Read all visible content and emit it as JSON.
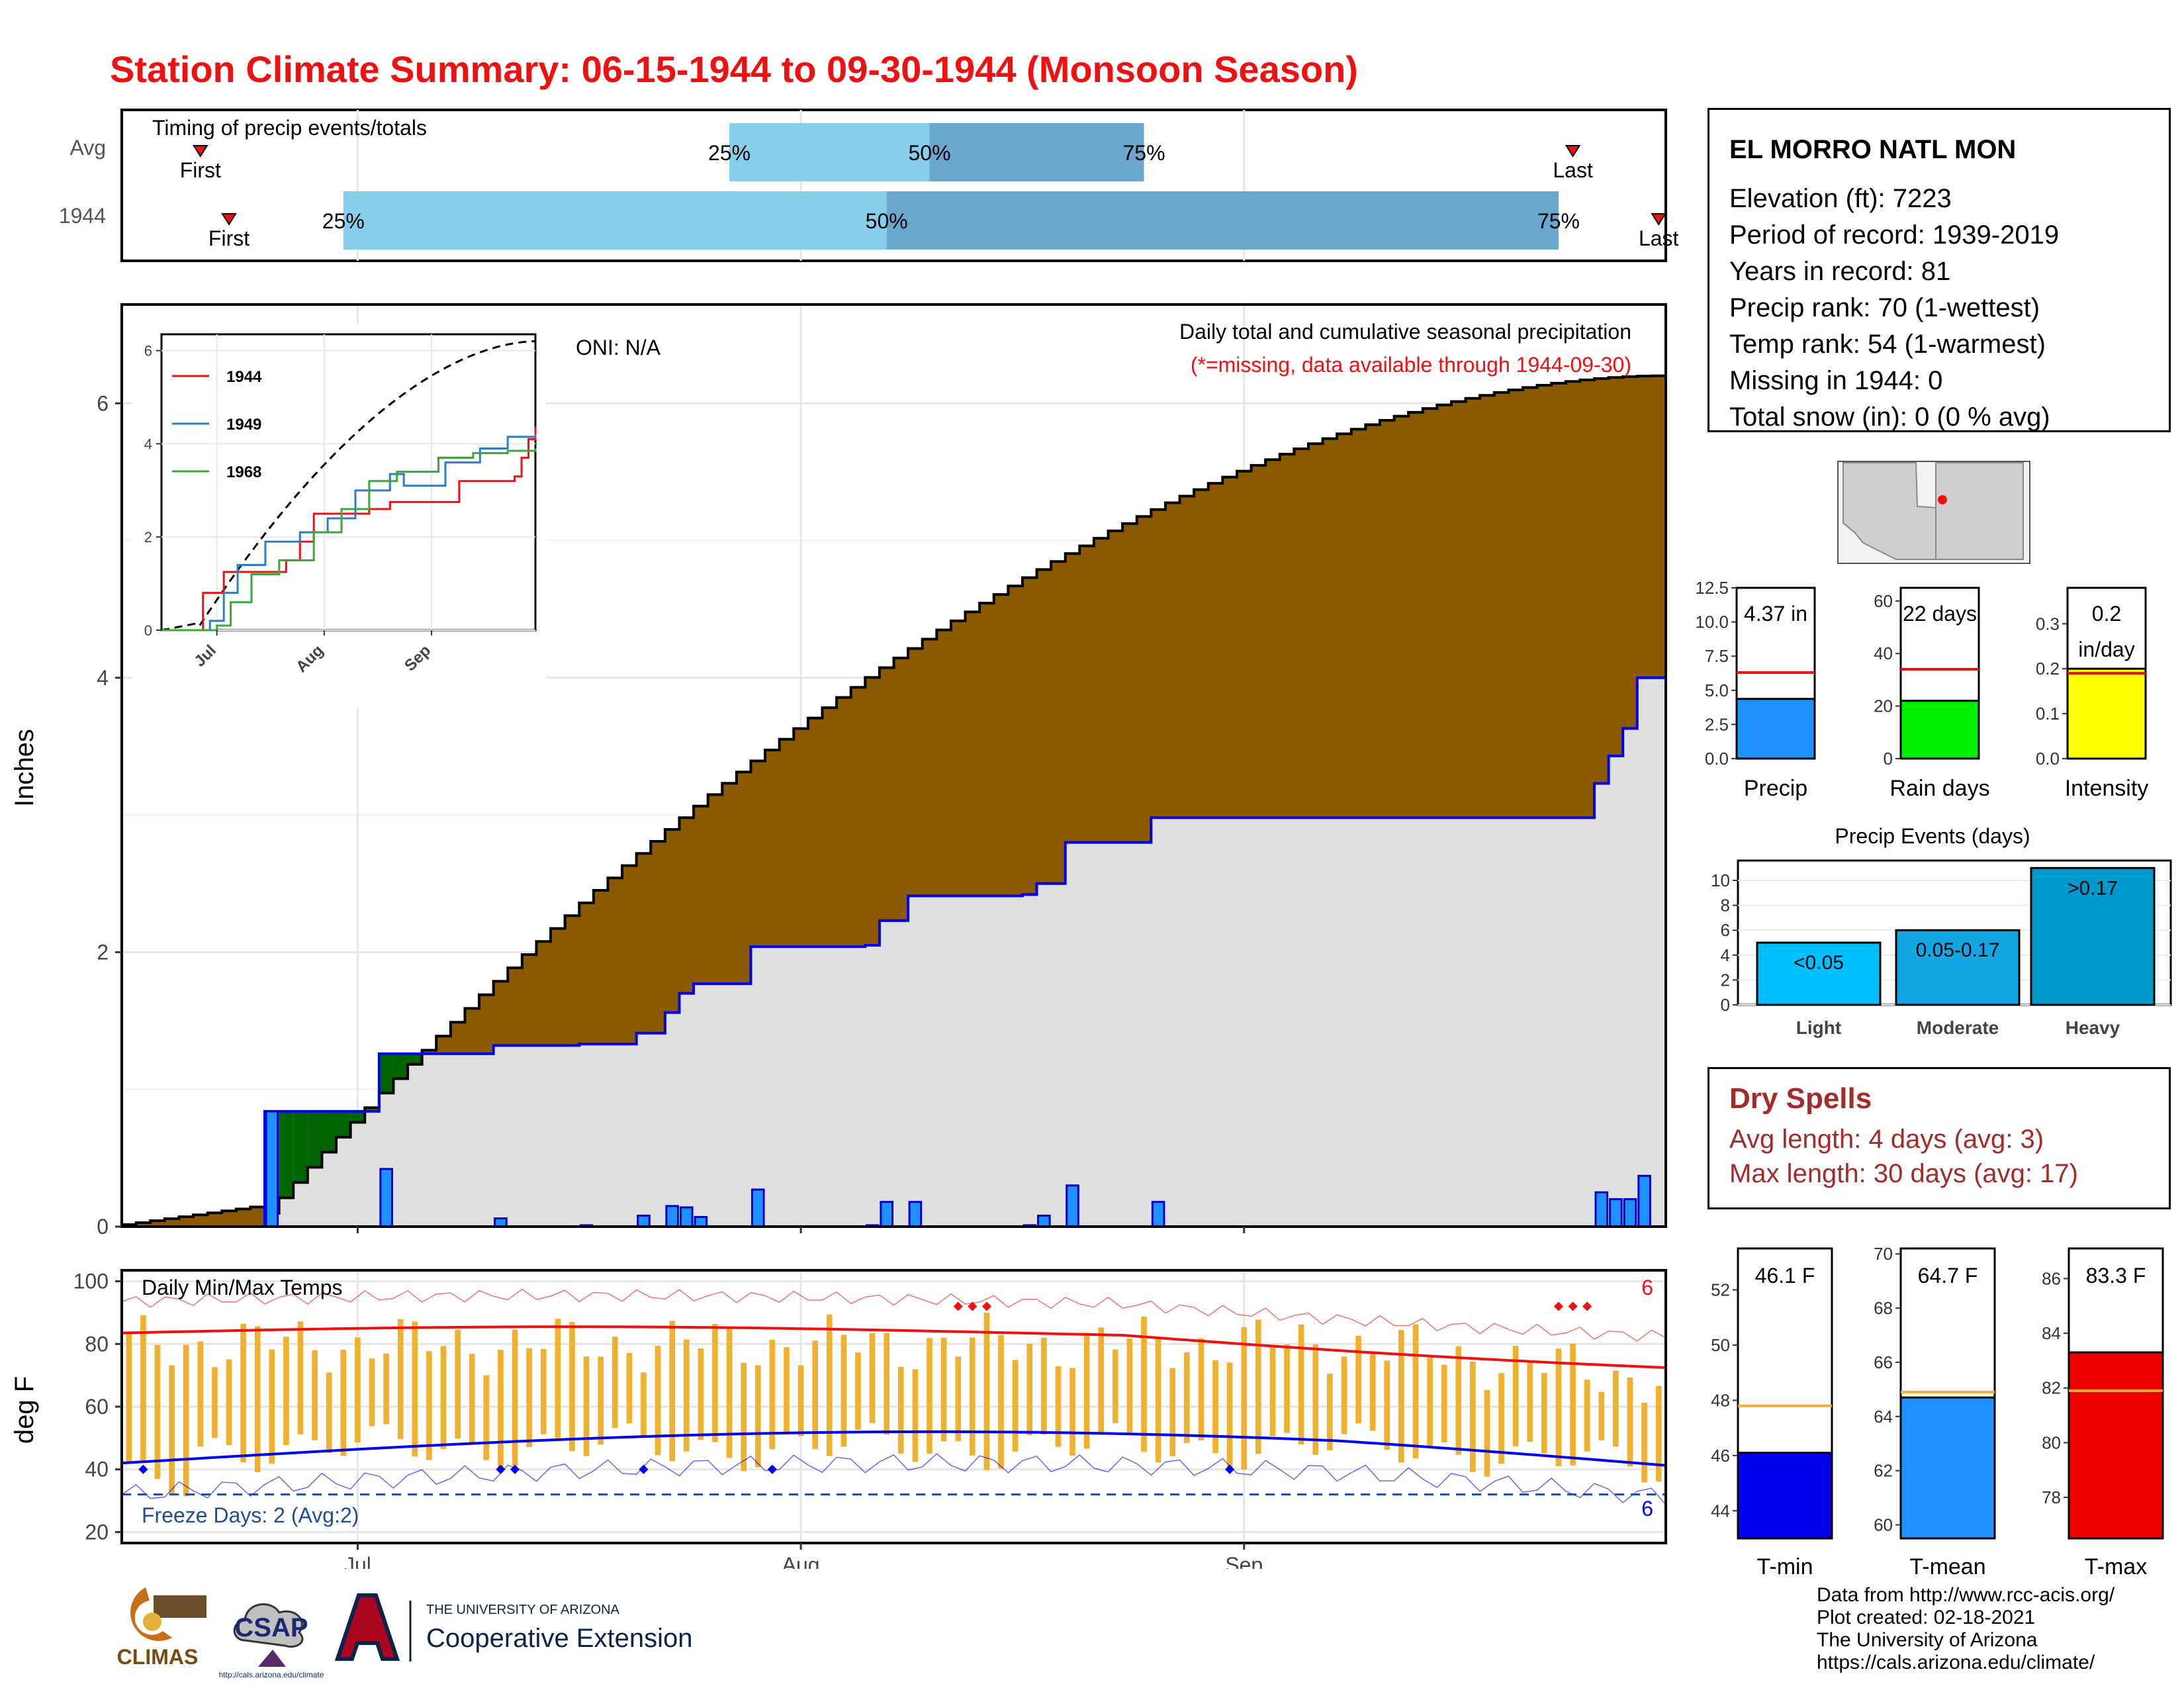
{
  "title": "Station Climate Summary: 06-15-1944 to 09-30-1944 (Monsoon Season)",
  "timing": {
    "heading": "Timing of precip events/totals",
    "rows": [
      {
        "label": "Avg",
        "first_label": "First",
        "last_label": "Last",
        "first_date": "1944-06-20",
        "last_date": "1944-09-24",
        "p25_date": "1944-07-27",
        "p50_date": "1944-08-10",
        "p75_date": "1944-08-25"
      },
      {
        "label": "1944",
        "first_label": "First",
        "last_label": "Last",
        "first_date": "1944-06-22",
        "last_date": "1944-09-30",
        "p25_date": "1944-06-30",
        "p50_date": "1944-08-07",
        "p75_date": "1944-09-23"
      }
    ],
    "pct_labels": [
      "25%",
      "50%",
      "75%"
    ],
    "colors": {
      "light": "#87ceeb",
      "dark": "#6aa6cd",
      "marker": "#ee1111"
    }
  },
  "main_chart": {
    "ylabel": "Inches",
    "annotation_title": "Daily total and cumulative seasonal precipitation",
    "annotation_missing": "(*=missing, data available through 1944-09-30)",
    "oni": "ONI: N/A",
    "y_ticks": [
      "0",
      "2",
      "4",
      "6"
    ],
    "x_ticks": [
      "Jul",
      "Aug",
      "Sep"
    ],
    "colors": {
      "above": "#006400",
      "below": "#8b5a00",
      "fill": "#e0e0e0",
      "line": "#0000ee",
      "bars": "#1e90ff"
    }
  },
  "inset": {
    "legend": [
      {
        "name": "1944",
        "color": "#ee1111"
      },
      {
        "name": "1949",
        "color": "#2e7dc2"
      },
      {
        "name": "1968",
        "color": "#3aa83a"
      }
    ],
    "y_ticks": [
      "0",
      "2",
      "4",
      "6"
    ],
    "x_ticks": [
      "Jul",
      "Aug",
      "Sep"
    ]
  },
  "temps": {
    "title": "Daily Min/Max Temps",
    "ylabel": "deg F",
    "y_ticks": [
      "20",
      "40",
      "60",
      "80",
      "100"
    ],
    "x_ticks": [
      "Jul",
      "Aug",
      "Sep"
    ],
    "freeze_label": "Freeze Days: 2 (Avg:2)",
    "record_high_count": "6",
    "record_low_count": "6",
    "colors": {
      "bars": "#f0b030",
      "max": "#ee1111",
      "min": "#0000ee",
      "freeze": "#1f4e99"
    }
  },
  "station": {
    "name": "EL MORRO NATL MON",
    "lines": [
      "Elevation (ft): 7223",
      "Period of record: 1939-2019",
      "Years in record: 81",
      "Precip rank: 70 (1-wettest)",
      "Temp rank: 54 (1-warmest)",
      "Missing in 1944: 0",
      "Total snow (in): 0 (0 % avg)"
    ]
  },
  "mini_bars": [
    {
      "label": "Precip",
      "value_text": "4.37 in",
      "value": 4.37,
      "avg": 6.3,
      "max": 12.5,
      "ticks": [
        "0.0",
        "2.5",
        "5.0",
        "7.5",
        "10.0",
        "12.5"
      ],
      "color": "#1e90ff"
    },
    {
      "label": "Rain days",
      "value_text": "22 days",
      "value": 22,
      "avg": 34,
      "max": 65,
      "ticks": [
        "0",
        "20",
        "40",
        "60"
      ],
      "color": "#00ee00"
    },
    {
      "label": "Intensity",
      "value_text": "0.2",
      "value_text2": "in/day",
      "value": 0.2,
      "avg": 0.19,
      "max": 0.38,
      "ticks": [
        "0.0",
        "0.1",
        "0.2",
        "0.3"
      ],
      "color": "#ffff00"
    }
  ],
  "precip_events": {
    "title": "Precip Events (days)",
    "y_ticks": [
      "0",
      "2",
      "4",
      "6",
      "8",
      "10"
    ],
    "bars": [
      {
        "category": "Light",
        "label": "<0.05",
        "value": 5
      },
      {
        "category": "Moderate",
        "label": "0.05-0.17",
        "value": 6
      },
      {
        "category": "Heavy",
        "label": ">0.17",
        "value": 11
      }
    ],
    "color": "#0099cc"
  },
  "dry_spells": {
    "title": "Dry Spells",
    "avg_line": "Avg length: 4 days (avg: 3)",
    "max_line": "Max length: 30 days (avg: 17)",
    "color": "#a52a2a"
  },
  "temp_bars": [
    {
      "label": "T-min",
      "value_text": "46.1 F",
      "value": 46.1,
      "avg": 47.8,
      "min": 43,
      "max": 53.5,
      "ticks": [
        "44",
        "46",
        "48",
        "50",
        "52"
      ],
      "color": "#0000ee"
    },
    {
      "label": "T-mean",
      "value_text": "64.7 F",
      "value": 64.7,
      "avg": 64.9,
      "min": 59.5,
      "max": 70.2,
      "ticks": [
        "60",
        "62",
        "64",
        "66",
        "68",
        "70"
      ],
      "color": "#1e90ff"
    },
    {
      "label": "T-max",
      "value_text": "83.3 F",
      "value": 83.3,
      "avg": 81.9,
      "min": 76.5,
      "max": 87.1,
      "ticks": [
        "78",
        "80",
        "82",
        "84",
        "86"
      ],
      "color": "#ee0000"
    }
  ],
  "credits": [
    "Data from http://www.rcc-acis.org/",
    "Plot created: 02-18-2021",
    "The University of Arizona",
    "https://cals.arizona.edu/climate/"
  ],
  "logos": {
    "climas": "CLIMAS",
    "csap": "CSAP",
    "csap_url": "http://cals.arizona.edu/climate",
    "ua_small": "THE UNIVERSITY OF ARIZONA",
    "ua_big": "Cooperative Extension"
  }
}
